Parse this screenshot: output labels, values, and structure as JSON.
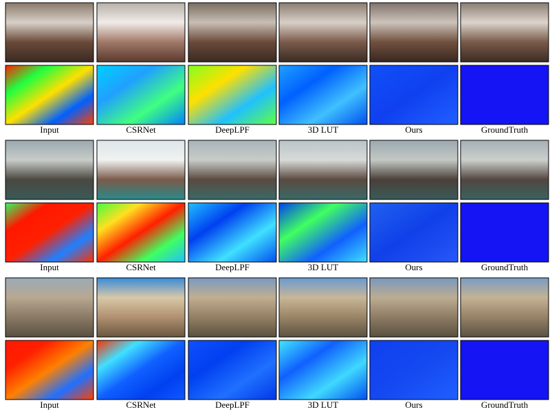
{
  "groups": [
    {
      "labels": [
        "Input",
        "CSRNet",
        "DeepLPF",
        "3D LUT",
        "Ours",
        "GroundTruth"
      ]
    },
    {
      "labels": [
        "Input",
        "CSRNet",
        "DeepLPF",
        "3D LUT",
        "Ours",
        "GroundTruth"
      ]
    },
    {
      "labels": [
        "Input",
        "CSRNet",
        "DeepLPF",
        "3D LUT",
        "Ours",
        "GroundTruth"
      ]
    }
  ]
}
